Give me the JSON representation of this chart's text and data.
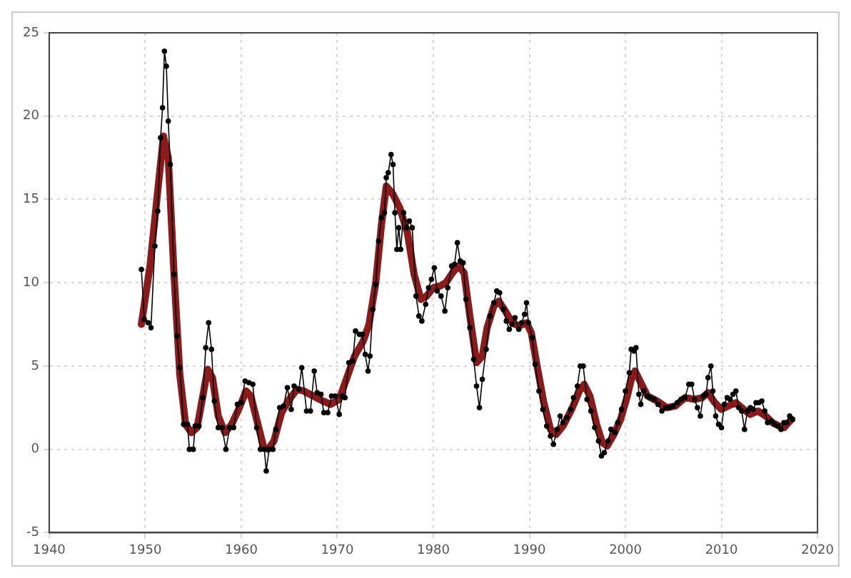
{
  "chart_data": {
    "type": "line",
    "xlim": [
      1940,
      2020
    ],
    "xticks": [
      1940,
      1950,
      1960,
      1970,
      1980,
      1990,
      2000,
      2010,
      2020
    ],
    "ylim": [
      -5,
      25
    ],
    "yticks": [
      -5,
      0,
      5,
      10,
      15,
      20,
      25
    ],
    "grid": true,
    "line_style": "solid",
    "series": [
      {
        "color": "#000000",
        "marker": "circle",
        "x": [
          1949.6,
          1949.9,
          1950.3,
          1950.6,
          1951.0,
          1951.3,
          1951.6,
          1951.8,
          1952.0,
          1952.2,
          1952.4,
          1952.6,
          1953.0,
          1953.3,
          1953.6,
          1954.0,
          1954.4,
          1954.6,
          1955.0,
          1955.2,
          1955.6,
          1956.0,
          1956.3,
          1956.6,
          1956.9,
          1957.2,
          1957.6,
          1958.0,
          1958.4,
          1958.8,
          1959.2,
          1959.6,
          1960.0,
          1960.4,
          1960.8,
          1961.2,
          1961.6,
          1962.0,
          1962.4,
          1962.6,
          1962.9,
          1963.3,
          1963.6,
          1964.0,
          1964.4,
          1964.8,
          1965.2,
          1965.5,
          1966.0,
          1966.3,
          1966.8,
          1967.2,
          1967.6,
          1967.9,
          1968.3,
          1968.6,
          1969.0,
          1969.4,
          1969.8,
          1970.2,
          1970.5,
          1970.8,
          1971.2,
          1971.6,
          1971.9,
          1972.3,
          1972.6,
          1972.9,
          1973.2,
          1973.4,
          1973.7,
          1974.0,
          1974.3,
          1974.6,
          1974.9,
          1975.1,
          1975.3,
          1975.6,
          1975.8,
          1976.0,
          1976.2,
          1976.4,
          1976.6,
          1976.9,
          1977.2,
          1977.5,
          1977.8,
          1978.2,
          1978.5,
          1978.8,
          1979.2,
          1979.5,
          1979.8,
          1980.1,
          1980.4,
          1980.8,
          1981.2,
          1981.5,
          1981.9,
          1982.2,
          1982.5,
          1982.8,
          1983.1,
          1983.4,
          1983.8,
          1984.2,
          1984.5,
          1984.8,
          1985.1,
          1985.5,
          1985.9,
          1986.3,
          1986.6,
          1986.9,
          1987.3,
          1987.6,
          1987.9,
          1988.2,
          1988.5,
          1988.9,
          1989.2,
          1989.5,
          1989.7,
          1989.9,
          1990.3,
          1990.6,
          1991.0,
          1991.4,
          1991.8,
          1992.2,
          1992.5,
          1992.9,
          1993.2,
          1993.5,
          1993.9,
          1994.3,
          1994.6,
          1995.0,
          1995.3,
          1995.6,
          1996.0,
          1996.4,
          1996.8,
          1997.2,
          1997.5,
          1997.8,
          1998.2,
          1998.5,
          1998.9,
          1999.2,
          1999.6,
          2000.0,
          2000.4,
          2000.6,
          2000.9,
          2001.1,
          2001.4,
          2001.6,
          2001.9,
          2002.3,
          2002.6,
          2003.0,
          2003.4,
          2003.8,
          2004.2,
          2004.6,
          2005.0,
          2005.4,
          2005.8,
          2006.2,
          2006.6,
          2006.9,
          2007.2,
          2007.5,
          2007.8,
          2008.1,
          2008.4,
          2008.6,
          2008.9,
          2009.1,
          2009.4,
          2009.7,
          2010.0,
          2010.3,
          2010.6,
          2010.9,
          2011.2,
          2011.5,
          2011.8,
          2012.1,
          2012.4,
          2012.7,
          2013.0,
          2013.3,
          2013.6,
          2013.9,
          2014.2,
          2014.5,
          2014.8,
          2015.2,
          2015.5,
          2015.9,
          2016.2,
          2016.5,
          2016.8,
          2017.1,
          2017.4
        ],
        "values": [
          10.8,
          7.8,
          7.6,
          7.3,
          12.2,
          14.3,
          18.7,
          20.5,
          23.9,
          23.0,
          19.7,
          17.1,
          10.5,
          6.8,
          4.9,
          1.5,
          1.5,
          0,
          0,
          1.4,
          1.4,
          3.1,
          6.1,
          7.6,
          6.0,
          2.9,
          1.3,
          1.3,
          0,
          1.3,
          1.3,
          2.7,
          2.8,
          4.1,
          4.0,
          3.9,
          1.3,
          0,
          0,
          -1.3,
          0,
          0,
          1.2,
          2.5,
          2.6,
          3.7,
          2.4,
          3.8,
          3.6,
          4.9,
          2.3,
          2.3,
          4.7,
          3.4,
          3.3,
          2.2,
          2.2,
          3.2,
          3.2,
          2.1,
          3.2,
          3.1,
          5.2,
          5.3,
          7.1,
          6.9,
          6.9,
          5.7,
          4.7,
          5.6,
          8.4,
          9.9,
          12.5,
          13.9,
          14.2,
          16.3,
          16.6,
          17.7,
          17.1,
          14.2,
          12.0,
          13.3,
          12.0,
          14.2,
          13.3,
          13.7,
          13.3,
          9.2,
          8.0,
          7.7,
          8.7,
          9.7,
          10.2,
          10.9,
          9.5,
          9.2,
          8.3,
          9.7,
          11.0,
          11.1,
          12.4,
          11.3,
          11.2,
          9.0,
          7.3,
          5.4,
          3.8,
          2.5,
          4.2,
          6.0,
          8.0,
          8.8,
          9.5,
          9.4,
          8.4,
          7.7,
          7.2,
          7.5,
          7.9,
          7.2,
          7.6,
          8.1,
          8.8,
          7.6,
          6.7,
          5.1,
          3.5,
          2.4,
          1.4,
          0.8,
          0.3,
          1.2,
          2.0,
          1.6,
          1.9,
          2.4,
          3.1,
          3.8,
          5.0,
          5.0,
          3.0,
          2.3,
          1.3,
          0.5,
          -0.4,
          -0.2,
          0.5,
          1.2,
          1.0,
          1.6,
          2.4,
          3.5,
          4.6,
          6.0,
          5.9,
          6.1,
          3.3,
          2.7,
          3.5,
          3.2,
          3.1,
          3.0,
          2.7,
          2.3,
          2.5,
          2.5,
          2.6,
          2.8,
          3.0,
          3.1,
          3.9,
          3.9,
          3.0,
          2.5,
          2.0,
          3.2,
          3.3,
          4.3,
          5.0,
          3.5,
          2.0,
          1.5,
          1.3,
          2.7,
          3.1,
          3.0,
          3.3,
          3.5,
          2.5,
          2.3,
          1.2,
          2.3,
          2.5,
          2.4,
          2.8,
          2.8,
          2.9,
          2.3,
          1.6,
          1.7,
          1.5,
          1.4,
          1.2,
          1.6,
          1.6,
          2.0,
          1.8
        ]
      },
      {
        "color": "#8b1a1a",
        "marker": "none",
        "x": [
          1949.6,
          1950.5,
          1951.3,
          1951.9,
          1952.4,
          1953.0,
          1953.6,
          1954.2,
          1954.8,
          1955.4,
          1956.0,
          1956.5,
          1957.0,
          1957.6,
          1958.3,
          1959.0,
          1959.8,
          1960.5,
          1961.0,
          1961.6,
          1962.3,
          1962.8,
          1963.4,
          1964.2,
          1965.0,
          1965.8,
          1966.5,
          1967.5,
          1968.5,
          1969.3,
          1970.2,
          1971.0,
          1971.8,
          1972.7,
          1973.3,
          1974.0,
          1974.6,
          1975.1,
          1975.8,
          1976.5,
          1977.3,
          1978.0,
          1978.7,
          1979.3,
          1980.0,
          1980.7,
          1981.3,
          1982.0,
          1982.6,
          1983.2,
          1983.8,
          1984.5,
          1985.1,
          1985.6,
          1986.3,
          1986.8,
          1987.5,
          1988.2,
          1988.9,
          1989.7,
          1990.2,
          1990.8,
          1991.5,
          1992.2,
          1992.8,
          1993.5,
          1994.4,
          1995.2,
          1995.7,
          1996.3,
          1997.0,
          1997.6,
          1998.1,
          1998.8,
          1999.5,
          2000.2,
          2000.7,
          2001.0,
          2001.6,
          2002.3,
          2003.3,
          2004.3,
          2005.2,
          2006.2,
          2007.2,
          2008.0,
          2008.6,
          2009.3,
          2010.0,
          2010.7,
          2011.5,
          2012.3,
          2013.0,
          2013.8,
          2014.6,
          2015.3,
          2016.0,
          2016.5,
          2017.3
        ],
        "values": [
          7.5,
          11,
          15.5,
          18.8,
          17.5,
          10.5,
          4.5,
          1.5,
          1.0,
          1.3,
          3.2,
          4.8,
          4.3,
          2.0,
          1.0,
          1.5,
          2.5,
          3.5,
          3.2,
          1.8,
          0.2,
          0.0,
          0.5,
          2.2,
          3.0,
          3.6,
          3.5,
          3.2,
          2.9,
          2.7,
          3.0,
          4.3,
          5.6,
          6.5,
          7.5,
          10.0,
          13.5,
          15.8,
          15.3,
          14.5,
          13.0,
          10.5,
          9.0,
          9.2,
          9.7,
          9.8,
          10.0,
          10.6,
          11.0,
          10.6,
          8.0,
          5.2,
          5.6,
          7.3,
          8.6,
          8.9,
          8.3,
          7.6,
          7.4,
          7.6,
          7.0,
          5.0,
          2.8,
          1.2,
          0.9,
          1.4,
          2.4,
          3.5,
          3.9,
          3.2,
          1.5,
          0.4,
          0.2,
          0.9,
          1.8,
          3.2,
          4.4,
          4.7,
          4.0,
          3.2,
          2.9,
          2.5,
          2.6,
          3.1,
          3.0,
          3.1,
          3.4,
          2.8,
          2.4,
          2.6,
          2.8,
          2.4,
          2.1,
          2.3,
          2.0,
          1.6,
          1.4,
          1.3,
          1.8
        ]
      }
    ]
  }
}
